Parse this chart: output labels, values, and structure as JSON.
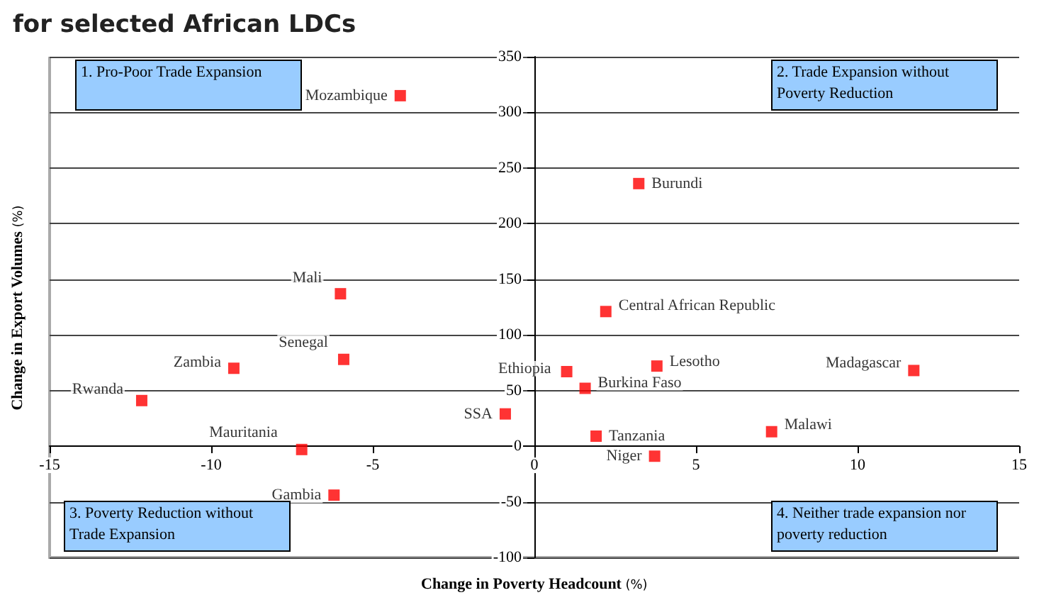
{
  "chart_data": {
    "type": "scatter",
    "title": "for selected African LDCs",
    "xlabel": "Change in Poverty Headcount (%)",
    "ylabel": "Change in Export Volumes (%)",
    "x": [
      -4.15,
      3.23,
      2.21,
      -6.0,
      -9.3,
      -5.9,
      -12.15,
      -7.2,
      -6.2,
      -0.9,
      1.0,
      1.57,
      3.79,
      11.74,
      1.91,
      3.72,
      7.34
    ],
    "values": [
      315,
      236,
      121,
      137,
      70,
      78,
      41,
      -3,
      -44,
      29,
      67,
      52,
      72,
      68,
      9,
      -9,
      13
    ],
    "color": "#ff0000",
    "marker": "square",
    "xlim": [
      -15,
      15
    ],
    "xticks": [
      -15,
      -10,
      -5,
      0,
      5,
      10,
      15
    ],
    "ylim": [
      -100,
      350
    ],
    "yticks": [
      -100,
      -50,
      0,
      50,
      100,
      150,
      200,
      250,
      300,
      350
    ],
    "grid": "y",
    "annotations": [
      "1. Pro-Poor Trade Expansion",
      "2. Trade Expansion without Poverty Reduction",
      "3. Poverty Reduction without Trade Expansion",
      "4. Neither trade expansion nor poverty reduction",
      {
        "text": "Mozambique",
        "x": -4.15,
        "y": 315
      },
      {
        "text": "Burundi",
        "x": 3.23,
        "y": 236
      },
      {
        "text": "Central African Republic",
        "x": 2.21,
        "y": 121
      },
      {
        "text": "Mali",
        "x": -6.0,
        "y": 137
      },
      {
        "text": "Zambia",
        "x": -9.3,
        "y": 70
      },
      {
        "text": "Senegal",
        "x": -5.9,
        "y": 78
      },
      {
        "text": "Rwanda",
        "x": -12.15,
        "y": 41
      },
      {
        "text": "Mauritania",
        "x": -7.2,
        "y": -3
      },
      {
        "text": "Gambia",
        "x": -6.2,
        "y": -44
      },
      {
        "text": "SSA",
        "x": -0.9,
        "y": 29
      },
      {
        "text": "Ethiopia",
        "x": 1.0,
        "y": 67
      },
      {
        "text": "Burkina Faso",
        "x": 1.57,
        "y": 52
      },
      {
        "text": "Lesotho",
        "x": 3.79,
        "y": 72
      },
      {
        "text": "Madagascar",
        "x": 11.74,
        "y": 68
      },
      {
        "text": "Tanzania",
        "x": 1.91,
        "y": 9
      },
      {
        "text": "Niger",
        "x": 3.72,
        "y": -9
      },
      {
        "text": "Malawi",
        "x": 7.34,
        "y": 13
      }
    ]
  }
}
